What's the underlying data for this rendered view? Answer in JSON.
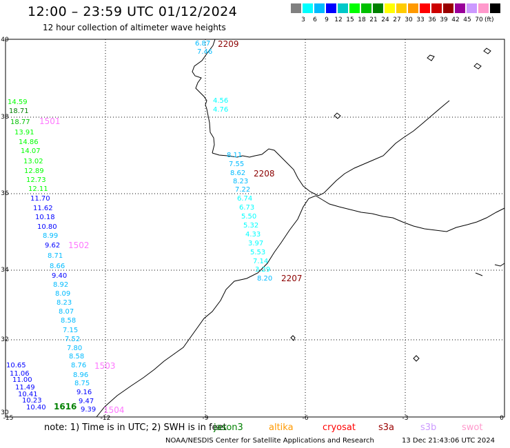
{
  "header": {
    "title": "12:00 – 23:59 UTC 01/12/2024",
    "subtitle": "12 hour collection of altimeter wave heights"
  },
  "legend": {
    "colors": [
      "#808080",
      "#00ffff",
      "#00bbff",
      "#0000ff",
      "#00c8c8",
      "#00ff00",
      "#00c000",
      "#008000",
      "#ffff00",
      "#ffcc00",
      "#ff9900",
      "#ff0000",
      "#cc0000",
      "#990000",
      "#990099",
      "#cc99ff",
      "#ff99cc",
      "#000000"
    ],
    "labels": [
      "3",
      "6",
      "9",
      "12",
      "15",
      "18",
      "21",
      "24",
      "27",
      "30",
      "33",
      "36",
      "39",
      "42",
      "45",
      "70"
    ],
    "unit": "(ft)"
  },
  "axes": {
    "y_ticks": [
      "40",
      "38",
      "36",
      "34",
      "32",
      "30"
    ],
    "x_ticks": [
      "-15",
      "-12",
      "-9",
      "-6",
      "-3",
      "0"
    ]
  },
  "pass_labels": [
    {
      "text": "2209",
      "color": "#8b0000"
    },
    {
      "text": "2208",
      "color": "#8b0000"
    },
    {
      "text": "2207",
      "color": "#8b0000"
    },
    {
      "text": "1501",
      "color": "#ff77ff"
    },
    {
      "text": "1502",
      "color": "#ff77ff"
    },
    {
      "text": "1503",
      "color": "#ff77ff"
    },
    {
      "text": "1504",
      "color": "#ff77ff"
    },
    {
      "text": "1616",
      "color": "#008000"
    }
  ],
  "wave_heights": [
    {
      "text": "6.87",
      "color": "#00bbff"
    },
    {
      "text": "7.46",
      "color": "#00bbff"
    },
    {
      "text": "4.56",
      "color": "#00ffff"
    },
    {
      "text": "4.76",
      "color": "#00ffff"
    },
    {
      "text": "8.11",
      "color": "#00bbff"
    },
    {
      "text": "7.55",
      "color": "#00bbff"
    },
    {
      "text": "8.62",
      "color": "#00bbff"
    },
    {
      "text": "8.23",
      "color": "#00bbff"
    },
    {
      "text": "7.22",
      "color": "#00bbff"
    },
    {
      "text": "6.74",
      "color": "#00ffff"
    },
    {
      "text": "6.73",
      "color": "#00ffff"
    },
    {
      "text": "5.50",
      "color": "#00ffff"
    },
    {
      "text": "5.32",
      "color": "#00ffff"
    },
    {
      "text": "4.33",
      "color": "#00ffff"
    },
    {
      "text": "3.97",
      "color": "#00ffff"
    },
    {
      "text": "5.53",
      "color": "#00ffff"
    },
    {
      "text": "7.14",
      "color": "#00ffff"
    },
    {
      "text": "3.29",
      "color": "#00ffff"
    },
    {
      "text": "8.20",
      "color": "#00bbff"
    },
    {
      "text": "14.59",
      "color": "#00ff00"
    },
    {
      "text": "18.71",
      "color": "#008000"
    },
    {
      "text": "18.77",
      "color": "#00c000"
    },
    {
      "text": "13.91",
      "color": "#00ff00"
    },
    {
      "text": "14.86",
      "color": "#00ff00"
    },
    {
      "text": "14.07",
      "color": "#00ff00"
    },
    {
      "text": "13.02",
      "color": "#00ff00"
    },
    {
      "text": "12.89",
      "color": "#00ff00"
    },
    {
      "text": "12.73",
      "color": "#00ff00"
    },
    {
      "text": "12.11",
      "color": "#00ff00"
    },
    {
      "text": "11.70",
      "color": "#0000ff"
    },
    {
      "text": "11.62",
      "color": "#0000ff"
    },
    {
      "text": "10.18",
      "color": "#0000ff"
    },
    {
      "text": "10.80",
      "color": "#0000ff"
    },
    {
      "text": "8.99",
      "color": "#00bbff"
    },
    {
      "text": "9.62",
      "color": "#0000ff"
    },
    {
      "text": "8.71",
      "color": "#00bbff"
    },
    {
      "text": "8.66",
      "color": "#00bbff"
    },
    {
      "text": "9.40",
      "color": "#0000ff"
    },
    {
      "text": "8.92",
      "color": "#00bbff"
    },
    {
      "text": "8.09",
      "color": "#00bbff"
    },
    {
      "text": "8.23",
      "color": "#00bbff"
    },
    {
      "text": "8.07",
      "color": "#00bbff"
    },
    {
      "text": "8.58",
      "color": "#00bbff"
    },
    {
      "text": "7.15",
      "color": "#00bbff"
    },
    {
      "text": "7.52",
      "color": "#00bbff"
    },
    {
      "text": "7.80",
      "color": "#00bbff"
    },
    {
      "text": "8.58",
      "color": "#00bbff"
    },
    {
      "text": "8.76",
      "color": "#00bbff"
    },
    {
      "text": "8.96",
      "color": "#00bbff"
    },
    {
      "text": "8.75",
      "color": "#00bbff"
    },
    {
      "text": "9.16",
      "color": "#0000ff"
    },
    {
      "text": "9.47",
      "color": "#0000ff"
    },
    {
      "text": "9.39",
      "color": "#0000ff"
    },
    {
      "text": "10.65",
      "color": "#0000ff"
    },
    {
      "text": "11.06",
      "color": "#0000ff"
    },
    {
      "text": "11.00",
      "color": "#0000ff"
    },
    {
      "text": "11.49",
      "color": "#0000ff"
    },
    {
      "text": "10.41",
      "color": "#0000ff"
    },
    {
      "text": "10.23",
      "color": "#0000ff"
    },
    {
      "text": "10.40",
      "color": "#0000ff"
    }
  ],
  "footer": {
    "note": "note:  1) Time is in UTC;  2) SWH is in feet",
    "satellites": [
      {
        "text": "jason3",
        "color": "#008000"
      },
      {
        "text": "altika",
        "color": "#ff9900"
      },
      {
        "text": "cryosat",
        "color": "#ff0000"
      },
      {
        "text": "s3a",
        "color": "#990000"
      },
      {
        "text": "s3b",
        "color": "#cc99ff"
      },
      {
        "text": "swot",
        "color": "#ff99cc"
      }
    ],
    "credit": "NOAA/NESDIS Center for Satellite Applications and Research",
    "timestamp": "13 Dec 21:43:06 UTC 2024"
  }
}
